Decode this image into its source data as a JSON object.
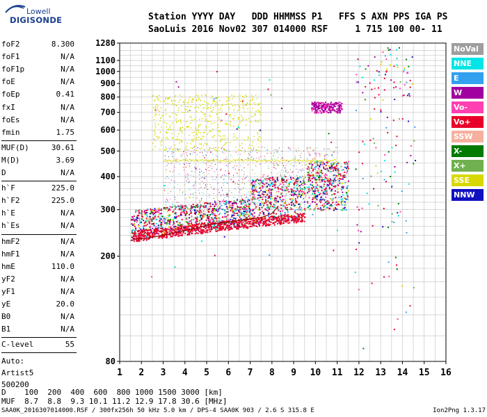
{
  "logo": {
    "line1": "Lowell",
    "line2": "DIGISONDE"
  },
  "header": {
    "line1": "Station YYYY DAY   DDD HHMMSS P1   FFS S AXN PPS IGA PS",
    "line2": "SaoLuis 2016 Nov02 307 014000 RSF     1 715 100 00- 11"
  },
  "params": [
    {
      "k": "foF2",
      "v": "8.300"
    },
    {
      "k": "foF1",
      "v": "N/A"
    },
    {
      "k": "foF1p",
      "v": "N/A"
    },
    {
      "k": "foE",
      "v": "N/A"
    },
    {
      "k": "foEp",
      "v": "0.41"
    },
    {
      "k": "fxI",
      "v": "N/A"
    },
    {
      "k": "foEs",
      "v": "N/A"
    },
    {
      "k": "fmin",
      "v": "1.75"
    },
    {
      "k": "MUF(D)",
      "v": "30.61"
    },
    {
      "k": "M(D)",
      "v": "3.69"
    },
    {
      "k": "D",
      "v": "N/A"
    },
    {
      "k": "h`F",
      "v": "225.0"
    },
    {
      "k": "h`F2",
      "v": "225.0"
    },
    {
      "k": "h`E",
      "v": "N/A"
    },
    {
      "k": "h`Es",
      "v": "N/A"
    },
    {
      "k": "hmF2",
      "v": "N/A"
    },
    {
      "k": "hmF1",
      "v": "N/A"
    },
    {
      "k": "hmE",
      "v": "110.0"
    },
    {
      "k": "yF2",
      "v": "N/A"
    },
    {
      "k": "yF1",
      "v": "N/A"
    },
    {
      "k": "yE",
      "v": "20.0"
    },
    {
      "k": "B0",
      "v": "N/A"
    },
    {
      "k": "B1",
      "v": "N/A"
    },
    {
      "k": "C-level",
      "v": "55"
    }
  ],
  "auto": [
    "Auto:",
    "Artist5",
    "500200"
  ],
  "dmuf": {
    "line1": "D    100  200  400  600  800 1000 1500 3000 [km]",
    "line2": "MUF  8.7  8.8  9.3 10.1 11.2 12.9 17.8 30.6 [MHz]"
  },
  "footer": {
    "left": "SAA0K_2016307014000.RSF / 300fx256h 50 kHz 5.0 km / DPS-4 SAA0K 903 / 2.6 S 315.8 E",
    "right": "Ion2Png 1.3.17"
  },
  "legend": [
    {
      "label": "NoVal",
      "color": "#9e9e9e"
    },
    {
      "label": "NNE",
      "color": "#00e5e5"
    },
    {
      "label": "E",
      "color": "#33a0f0"
    },
    {
      "label": "W",
      "color": "#a000a0"
    },
    {
      "label": "Vo-",
      "color": "#ff40b0"
    },
    {
      "label": "Vo+",
      "color": "#e8002a"
    },
    {
      "label": "SSW",
      "color": "#f5b0a0"
    },
    {
      "label": "X-",
      "color": "#007a00"
    },
    {
      "label": "X+",
      "color": "#70b050"
    },
    {
      "label": "SSE",
      "color": "#d8d800"
    },
    {
      "label": "NNW",
      "color": "#1010c0"
    }
  ],
  "chart_data": {
    "type": "scatter",
    "title": "",
    "xlabel": "",
    "ylabel": "",
    "xlim": [
      1,
      16
    ],
    "ylim": [
      80,
      1280
    ],
    "y_scale": "log",
    "grid": true,
    "x_ticks": [
      1,
      2,
      3,
      4,
      5,
      6,
      7,
      8,
      9,
      10,
      11,
      12,
      13,
      14,
      15,
      16
    ],
    "y_ticks": [
      80,
      200,
      300,
      400,
      500,
      600,
      700,
      800,
      900,
      1000,
      1100,
      1280
    ],
    "traces": [
      {
        "name": "O-trace F2",
        "color": "#e8002a",
        "points": [
          [
            1.6,
            232
          ],
          [
            2.0,
            233
          ],
          [
            2.5,
            236
          ],
          [
            3.0,
            240
          ],
          [
            3.5,
            245
          ],
          [
            4.0,
            250
          ],
          [
            4.5,
            255
          ],
          [
            5.0,
            262
          ],
          [
            5.5,
            266
          ],
          [
            6.0,
            270
          ],
          [
            6.5,
            273
          ],
          [
            7.0,
            276
          ],
          [
            7.5,
            280
          ],
          [
            8.0,
            290
          ],
          [
            8.3,
            310
          ]
        ]
      }
    ]
  }
}
